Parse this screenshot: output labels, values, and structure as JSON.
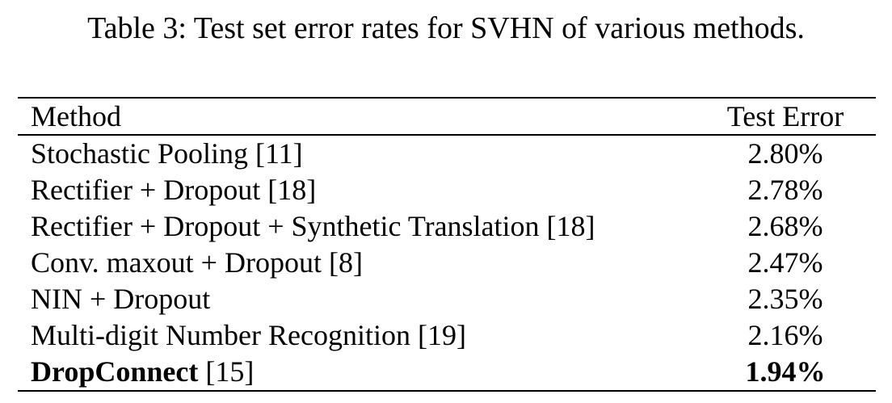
{
  "caption": "Table 3: Test set error rates for SVHN of various methods.",
  "table": {
    "headers": {
      "method": "Method",
      "test_error": "Test Error"
    },
    "rows": [
      {
        "method": "Stochastic Pooling",
        "ref": "[11]",
        "test_error": "2.80%",
        "bold": false
      },
      {
        "method": "Rectifier + Dropout",
        "ref": "[18]",
        "test_error": "2.78%",
        "bold": false
      },
      {
        "method": "Rectifier + Dropout + Synthetic Translation",
        "ref": "[18]",
        "test_error": "2.68%",
        "bold": false
      },
      {
        "method": "Conv. maxout + Dropout",
        "ref": "[8]",
        "test_error": "2.47%",
        "bold": false
      },
      {
        "method": "NIN + Dropout",
        "ref": "",
        "test_error": "2.35%",
        "bold": false
      },
      {
        "method": "Multi-digit Number Recognition",
        "ref": "[19]",
        "test_error": "2.16%",
        "bold": false
      },
      {
        "method": "DropConnect",
        "ref": "[15]",
        "test_error": "1.94%",
        "bold": true
      }
    ]
  }
}
